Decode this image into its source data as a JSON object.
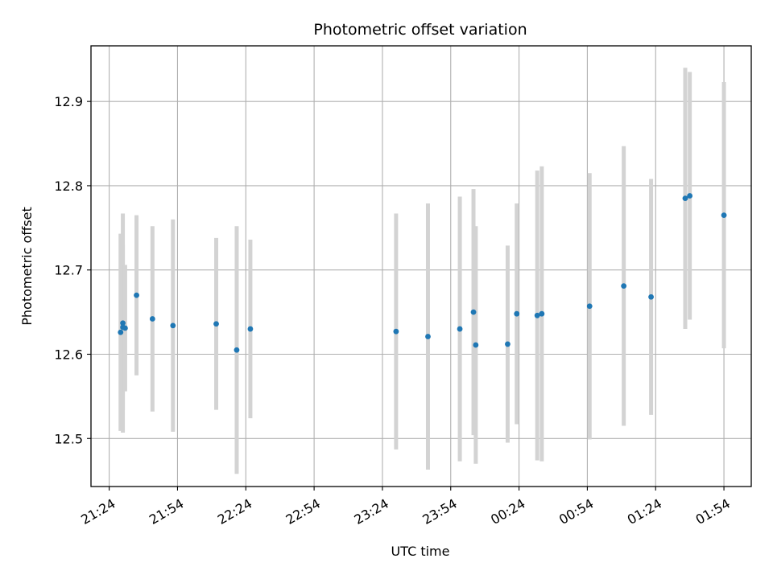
{
  "chart_data": {
    "type": "scatter",
    "title": "Photometric offset variation",
    "xlabel": "UTC time",
    "ylabel": "Photometric offset",
    "x_tick_labels": [
      "21:24",
      "21:54",
      "22:24",
      "22:54",
      "23:24",
      "23:54",
      "00:24",
      "00:54",
      "01:24",
      "01:54"
    ],
    "y_tick_labels": [
      "12.5",
      "12.6",
      "12.7",
      "12.8",
      "12.9"
    ],
    "y_ticks": [
      12.5,
      12.6,
      12.7,
      12.8,
      12.9
    ],
    "xlim": [
      "21:16",
      "02:06"
    ],
    "ylim": [
      12.443,
      12.966
    ],
    "grid": true,
    "point_color": "#1f77b4",
    "errorbar_color": "#d3d3d3",
    "points": [
      {
        "x": "21:29",
        "y": 12.626,
        "err": 0.117
      },
      {
        "x": "21:30",
        "y": 12.637,
        "err": 0.13
      },
      {
        "x": "21:30",
        "y": 12.632,
        "err": 0.098
      },
      {
        "x": "21:31",
        "y": 12.631,
        "err": 0.075
      },
      {
        "x": "21:36",
        "y": 12.67,
        "err": 0.095
      },
      {
        "x": "21:43",
        "y": 12.642,
        "err": 0.11
      },
      {
        "x": "21:52",
        "y": 12.634,
        "err": 0.126
      },
      {
        "x": "22:11",
        "y": 12.636,
        "err": 0.102
      },
      {
        "x": "22:20",
        "y": 12.605,
        "err": 0.147
      },
      {
        "x": "22:26",
        "y": 12.63,
        "err": 0.106
      },
      {
        "x": "23:30",
        "y": 12.627,
        "err": 0.14
      },
      {
        "x": "23:44",
        "y": 12.621,
        "err": 0.158
      },
      {
        "x": "23:58",
        "y": 12.63,
        "err": 0.157
      },
      {
        "x": "00:04",
        "y": 12.65,
        "err": 0.146
      },
      {
        "x": "00:05",
        "y": 12.611,
        "err": 0.141
      },
      {
        "x": "00:19",
        "y": 12.612,
        "err": 0.117
      },
      {
        "x": "00:23",
        "y": 12.648,
        "err": 0.131
      },
      {
        "x": "00:32",
        "y": 12.646,
        "err": 0.172
      },
      {
        "x": "00:34",
        "y": 12.648,
        "err": 0.175
      },
      {
        "x": "00:55",
        "y": 12.657,
        "err": 0.158
      },
      {
        "x": "01:10",
        "y": 12.681,
        "err": 0.166
      },
      {
        "x": "01:22",
        "y": 12.668,
        "err": 0.14
      },
      {
        "x": "01:37",
        "y": 12.785,
        "err": 0.155
      },
      {
        "x": "01:39",
        "y": 12.788,
        "err": 0.147
      },
      {
        "x": "01:54",
        "y": 12.765,
        "err": 0.158
      }
    ]
  }
}
